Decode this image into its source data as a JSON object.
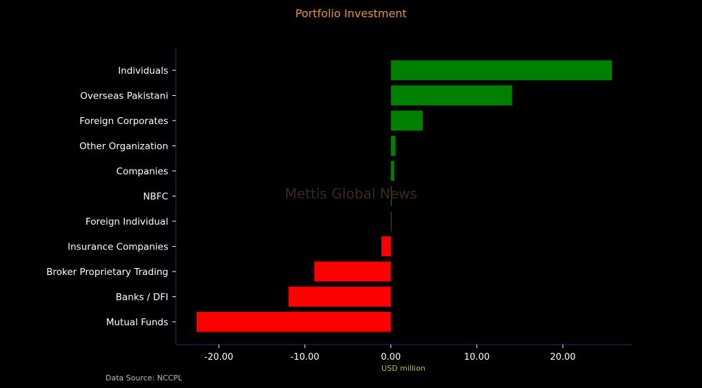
{
  "chart_data": {
    "type": "bar",
    "orientation": "horizontal",
    "title": "Portfolio Investment",
    "xlabel": "USD million",
    "ylabel": "",
    "categories": [
      "Individuals",
      "Overseas Pakistani",
      "Foreign Corporates",
      "Other Organization",
      "Companies",
      "NBFC",
      "Foreign Individual",
      "Insurance Companies",
      "Broker Proprietary Trading",
      "Banks / DFI",
      "Mutual Funds"
    ],
    "values": [
      25.7,
      14.1,
      3.7,
      0.55,
      0.4,
      0.1,
      0.05,
      -1.1,
      -8.9,
      -11.9,
      -22.6
    ],
    "xlim": [
      -25,
      28
    ],
    "xticks": [
      -20,
      -10,
      0,
      10,
      20
    ],
    "xtick_labels": [
      "-20.00",
      "-10.00",
      "0.00",
      "10.00",
      "20.00"
    ],
    "grid": false,
    "colors": {
      "positive": "#008000",
      "negative": "#ff0000",
      "background": "#000000",
      "axis": "#2a2a6e"
    }
  },
  "source_note": "Data Source: NCCPL",
  "watermark": "Mettis Global News"
}
